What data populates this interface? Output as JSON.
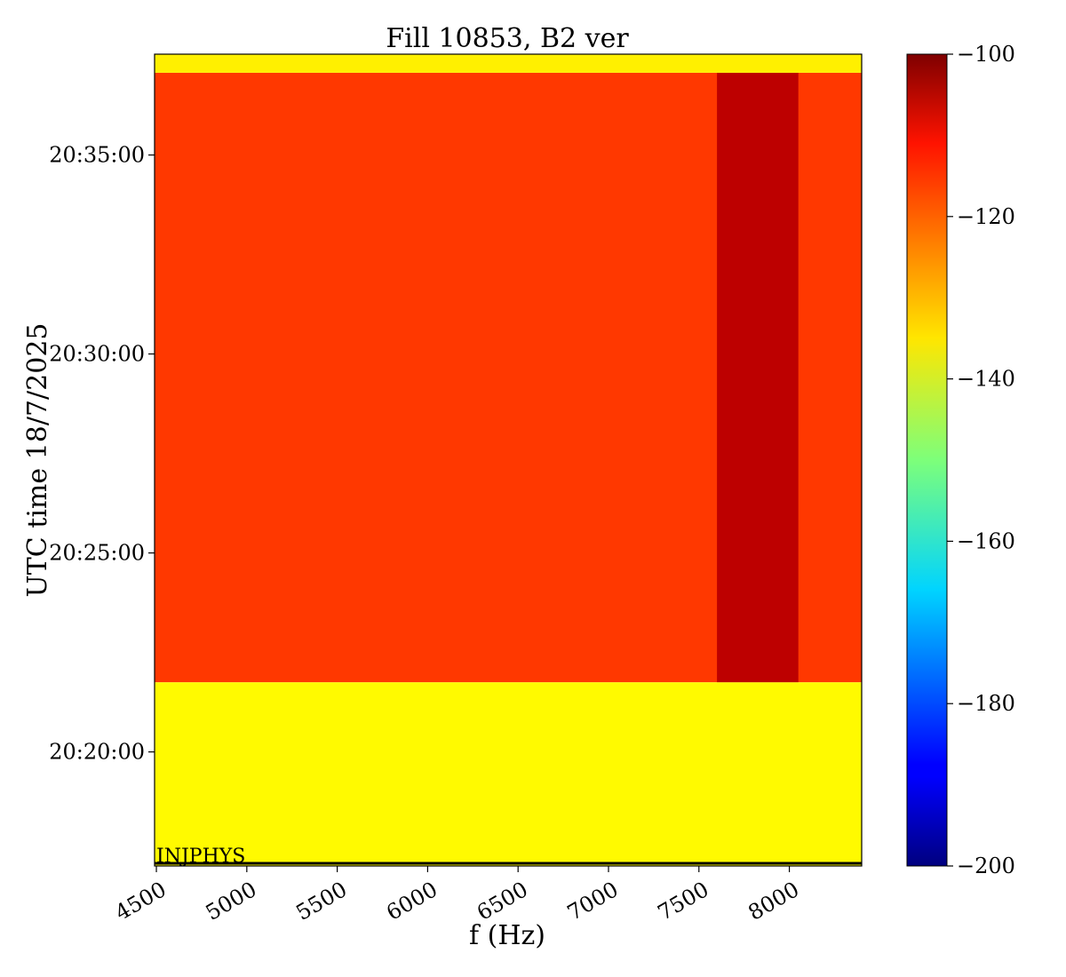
{
  "chart_data": {
    "type": "heatmap",
    "title": "Fill 10853, B2 ver",
    "xlabel": "f (Hz)",
    "ylabel": "UTC time 18/7/2025",
    "xlim": [
      4490,
      8400
    ],
    "x_ticks": [
      {
        "value": 4500,
        "label": "4500"
      },
      {
        "value": 5000,
        "label": "5000"
      },
      {
        "value": 5500,
        "label": "5500"
      },
      {
        "value": 6000,
        "label": "6000"
      },
      {
        "value": 6500,
        "label": "6500"
      },
      {
        "value": 7000,
        "label": "7000"
      },
      {
        "value": 7500,
        "label": "7500"
      },
      {
        "value": 8000,
        "label": "8000"
      }
    ],
    "y_ticks": [
      {
        "value": "20:20:00",
        "label": "20:20:00"
      },
      {
        "value": "20:25:00",
        "label": "20:25:00"
      },
      {
        "value": "20:30:00",
        "label": "20:30:00"
      },
      {
        "value": "20:35:00",
        "label": "20:35:00"
      }
    ],
    "ylim": [
      "20:17:08",
      "20:37:32"
    ],
    "colorbar": {
      "range": [
        -200,
        -100
      ],
      "colormap": "jet",
      "ticks": [
        {
          "value": -100,
          "label": "−100"
        },
        {
          "value": -120,
          "label": "−120"
        },
        {
          "value": -140,
          "label": "−140"
        },
        {
          "value": -160,
          "label": "−160"
        },
        {
          "value": -180,
          "label": "−180"
        },
        {
          "value": -200,
          "label": "−200"
        }
      ]
    },
    "regions": [
      {
        "t_start": "20:17:08",
        "t_end": "20:21:45",
        "f_start": 4490,
        "f_end": 8400,
        "value": -137
      },
      {
        "t_start": "20:21:45",
        "t_end": "20:37:04",
        "f_start": 4490,
        "f_end": 8400,
        "value": -118
      },
      {
        "t_start": "20:21:45",
        "t_end": "20:37:04",
        "f_start": 7600,
        "f_end": 8050,
        "value": -106
      },
      {
        "t_start": "20:37:04",
        "t_end": "20:37:32",
        "f_start": 4490,
        "f_end": 8400,
        "value": -136
      }
    ],
    "annotations": [
      {
        "text": "INJPHYS",
        "t": "20:17:08",
        "f": 4490
      }
    ]
  }
}
